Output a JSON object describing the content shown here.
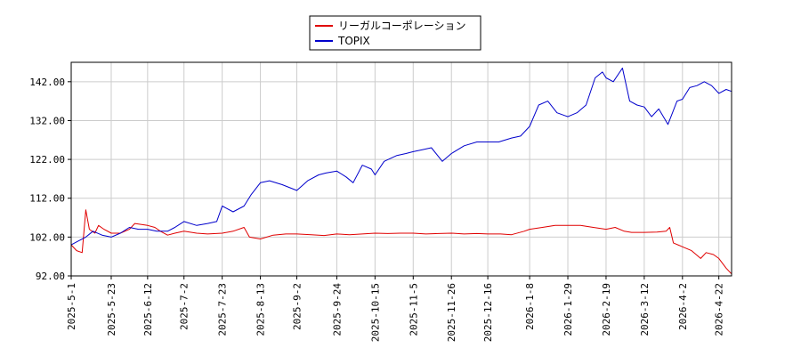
{
  "chart_data": {
    "type": "line",
    "title": "",
    "xlabel": "",
    "ylabel": "",
    "ylim": [
      92,
      147
    ],
    "y_ticks": [
      "92.00",
      "102.00",
      "112.00",
      "122.00",
      "132.00",
      "142.00"
    ],
    "x_ticks": [
      "2025-5-1",
      "2025-5-23",
      "2025-6-12",
      "2025-7-2",
      "2025-7-23",
      "2025-8-13",
      "2025-9-2",
      "2025-9-24",
      "2025-10-15",
      "2025-11-5",
      "2025-11-26",
      "2025-12-16",
      "2026-1-8",
      "2026-1-29",
      "2026-2-19",
      "2026-3-12",
      "2026-4-2",
      "2026-4-22"
    ],
    "grid": true,
    "legend": "top-center",
    "colors": {
      "series_1": "#e00000",
      "series_2": "#0000cc",
      "grid": "#cccccc"
    },
    "series": [
      {
        "name": "リーガルコーポレーション",
        "color": "#e00000",
        "points": [
          [
            "2025-5-1",
            100
          ],
          [
            "2025-5-4",
            98.5
          ],
          [
            "2025-5-7",
            98
          ],
          [
            "2025-5-9",
            109
          ],
          [
            "2025-5-11",
            104
          ],
          [
            "2025-5-14",
            103
          ],
          [
            "2025-5-16",
            105
          ],
          [
            "2025-5-19",
            104
          ],
          [
            "2025-5-23",
            103
          ],
          [
            "2025-5-28",
            103
          ],
          [
            "2025-6-2",
            104
          ],
          [
            "2025-6-5",
            105.5
          ],
          [
            "2025-6-12",
            105
          ],
          [
            "2025-6-16",
            104.5
          ],
          [
            "2025-6-19",
            103.5
          ],
          [
            "2025-6-23",
            102.5
          ],
          [
            "2025-6-27",
            103
          ],
          [
            "2025-7-2",
            103.5
          ],
          [
            "2025-7-9",
            103
          ],
          [
            "2025-7-15",
            102.8
          ],
          [
            "2025-7-23",
            103
          ],
          [
            "2025-7-29",
            103.5
          ],
          [
            "2025-8-4",
            104.5
          ],
          [
            "2025-8-7",
            102
          ],
          [
            "2025-8-13",
            101.5
          ],
          [
            "2025-8-20",
            102.5
          ],
          [
            "2025-8-27",
            102.8
          ],
          [
            "2025-9-2",
            102.8
          ],
          [
            "2025-9-10",
            102.6
          ],
          [
            "2025-9-17",
            102.4
          ],
          [
            "2025-9-24",
            102.8
          ],
          [
            "2025-10-1",
            102.6
          ],
          [
            "2025-10-8",
            102.8
          ],
          [
            "2025-10-15",
            103
          ],
          [
            "2025-10-22",
            102.9
          ],
          [
            "2025-10-29",
            103
          ],
          [
            "2025-11-5",
            103
          ],
          [
            "2025-11-12",
            102.8
          ],
          [
            "2025-11-19",
            102.9
          ],
          [
            "2025-11-26",
            103
          ],
          [
            "2025-12-3",
            102.8
          ],
          [
            "2025-12-10",
            102.9
          ],
          [
            "2025-12-16",
            102.8
          ],
          [
            "2025-12-23",
            102.8
          ],
          [
            "2025-12-29",
            102.6
          ],
          [
            "2026-1-5",
            103.5
          ],
          [
            "2026-1-8",
            104
          ],
          [
            "2026-1-15",
            104.5
          ],
          [
            "2026-1-22",
            105
          ],
          [
            "2026-1-29",
            105
          ],
          [
            "2026-2-5",
            105
          ],
          [
            "2026-2-12",
            104.5
          ],
          [
            "2026-2-19",
            104
          ],
          [
            "2026-2-24",
            104.5
          ],
          [
            "2026-3-1",
            103.5
          ],
          [
            "2026-3-5",
            103.2
          ],
          [
            "2026-3-12",
            103.2
          ],
          [
            "2026-3-19",
            103.3
          ],
          [
            "2026-3-24",
            103.5
          ],
          [
            "2026-3-26",
            104.5
          ],
          [
            "2026-3-28",
            100.5
          ],
          [
            "2026-4-2",
            99.5
          ],
          [
            "2026-4-7",
            98.5
          ],
          [
            "2026-4-12",
            96.5
          ],
          [
            "2026-4-15",
            98
          ],
          [
            "2026-4-19",
            97.5
          ],
          [
            "2026-4-22",
            96.5
          ],
          [
            "2026-4-26",
            94
          ],
          [
            "2026-4-29",
            92.5
          ]
        ]
      },
      {
        "name": "TOPIX",
        "color": "#0000cc",
        "points": [
          [
            "2025-5-1",
            100
          ],
          [
            "2025-5-5",
            101
          ],
          [
            "2025-5-9",
            102
          ],
          [
            "2025-5-13",
            103.5
          ],
          [
            "2025-5-18",
            102.5
          ],
          [
            "2025-5-23",
            102
          ],
          [
            "2025-5-28",
            103
          ],
          [
            "2025-6-2",
            104.5
          ],
          [
            "2025-6-7",
            104
          ],
          [
            "2025-6-12",
            104
          ],
          [
            "2025-6-17",
            103.5
          ],
          [
            "2025-6-23",
            103.5
          ],
          [
            "2025-6-27",
            104.5
          ],
          [
            "2025-7-2",
            106
          ],
          [
            "2025-7-9",
            105
          ],
          [
            "2025-7-15",
            105.5
          ],
          [
            "2025-7-20",
            106
          ],
          [
            "2025-7-23",
            110
          ],
          [
            "2025-7-29",
            108.5
          ],
          [
            "2025-8-4",
            110
          ],
          [
            "2025-8-8",
            113
          ],
          [
            "2025-8-13",
            116
          ],
          [
            "2025-8-18",
            116.5
          ],
          [
            "2025-8-25",
            115.5
          ],
          [
            "2025-9-2",
            114
          ],
          [
            "2025-9-8",
            116.5
          ],
          [
            "2025-9-14",
            118
          ],
          [
            "2025-9-18",
            118.5
          ],
          [
            "2025-9-24",
            119
          ],
          [
            "2025-9-29",
            117.5
          ],
          [
            "2025-10-3",
            116
          ],
          [
            "2025-10-8",
            120.5
          ],
          [
            "2025-10-13",
            119.5
          ],
          [
            "2025-10-15",
            118
          ],
          [
            "2025-10-20",
            121.5
          ],
          [
            "2025-10-27",
            123
          ],
          [
            "2025-11-1",
            123.5
          ],
          [
            "2025-11-5",
            124
          ],
          [
            "2025-11-10",
            124.5
          ],
          [
            "2025-11-15",
            125
          ],
          [
            "2025-11-21",
            121.5
          ],
          [
            "2025-11-26",
            123.5
          ],
          [
            "2025-12-3",
            125.5
          ],
          [
            "2025-12-10",
            126.5
          ],
          [
            "2025-12-16",
            126.5
          ],
          [
            "2025-12-22",
            126.5
          ],
          [
            "2025-12-29",
            127.5
          ],
          [
            "2026-1-3",
            128
          ],
          [
            "2026-1-8",
            130.5
          ],
          [
            "2026-1-13",
            136
          ],
          [
            "2026-1-18",
            137
          ],
          [
            "2026-1-23",
            134
          ],
          [
            "2026-1-29",
            133
          ],
          [
            "2026-2-3",
            134
          ],
          [
            "2026-2-8",
            136
          ],
          [
            "2026-2-13",
            143
          ],
          [
            "2026-2-17",
            144.5
          ],
          [
            "2026-2-19",
            143
          ],
          [
            "2026-2-23",
            142
          ],
          [
            "2026-2-28",
            145.5
          ],
          [
            "2026-3-4",
            137
          ],
          [
            "2026-3-8",
            136
          ],
          [
            "2026-3-12",
            135.5
          ],
          [
            "2026-3-16",
            133
          ],
          [
            "2026-3-20",
            135
          ],
          [
            "2026-3-25",
            131
          ],
          [
            "2026-3-30",
            137
          ],
          [
            "2026-4-2",
            137.5
          ],
          [
            "2026-4-6",
            140.5
          ],
          [
            "2026-4-10",
            141
          ],
          [
            "2026-4-14",
            142
          ],
          [
            "2026-4-18",
            141
          ],
          [
            "2026-4-22",
            139
          ],
          [
            "2026-4-26",
            140
          ],
          [
            "2026-4-29",
            139.5
          ]
        ]
      }
    ]
  }
}
